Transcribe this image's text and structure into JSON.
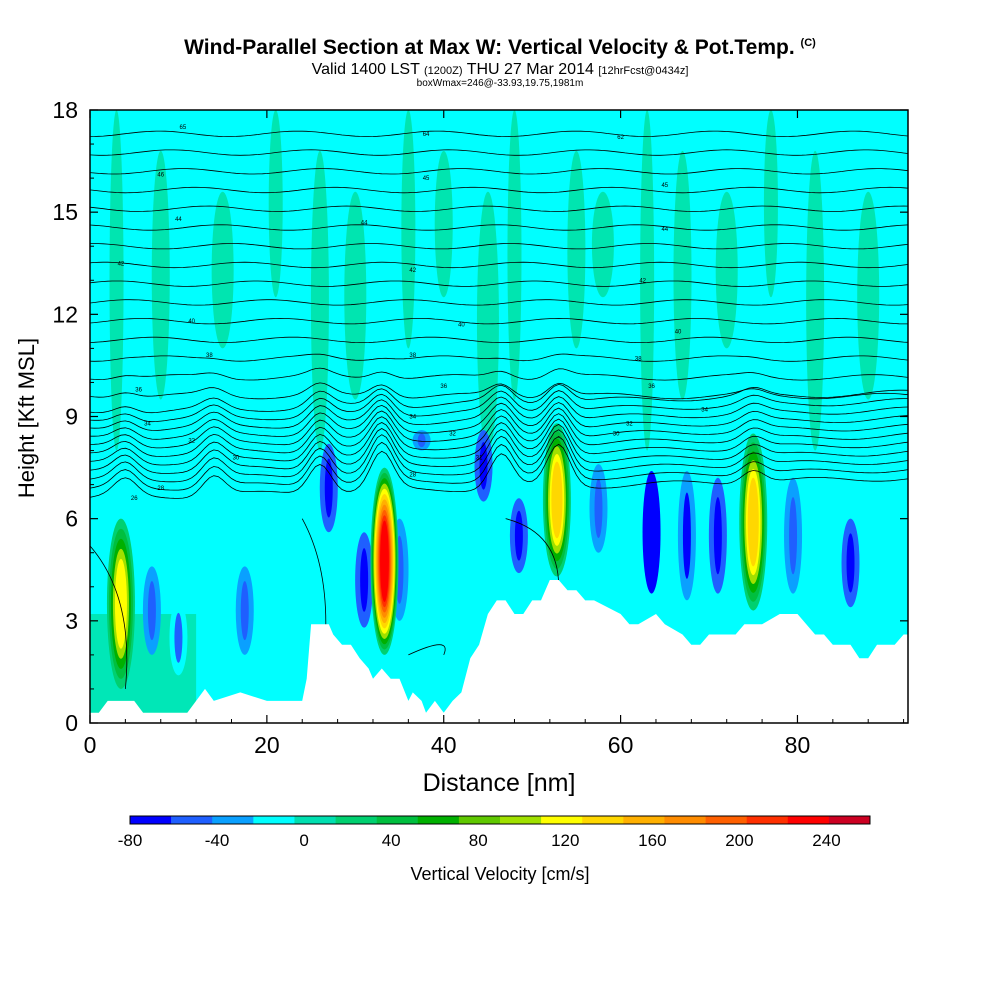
{
  "title": {
    "main": "Wind-Parallel Section at Max W: Vertical Velocity & Pot.Temp.",
    "copyright": "(C)",
    "valid_prefix": "Valid 1400 LST",
    "valid_utc": "(1200Z)",
    "valid_date": "THU 27 Mar 2014",
    "forecast": "[12hrFcst@0434z]",
    "box_info": "boxWmax=246@-33.93,19.75,1981m"
  },
  "colors": {
    "background_field": "#00ffff",
    "terrain": "#ffffff",
    "contour": "#000000"
  },
  "chart_data": {
    "type": "heatmap",
    "xlabel": "Distance [nm]",
    "ylabel": "Height [Kft MSL]",
    "xlim": [
      0,
      92.5
    ],
    "ylim": [
      0,
      18
    ],
    "x_ticks": [
      0,
      20,
      40,
      60,
      80
    ],
    "y_ticks": [
      0,
      3,
      6,
      9,
      12,
      15,
      18
    ],
    "colorbar": {
      "label": "Vertical Velocity [cm/s]",
      "tick_labels": [
        -80,
        -40,
        0,
        40,
        80,
        120,
        160,
        200,
        240
      ],
      "range": [
        -80,
        260
      ],
      "colors": [
        "#0000ff",
        "#1f5fff",
        "#0aa0ff",
        "#00ffff",
        "#00dfb0",
        "#00d070",
        "#00bf3f",
        "#00b000",
        "#5fc800",
        "#a0e000",
        "#ffff00",
        "#ffd700",
        "#ffb000",
        "#ff8c00",
        "#ff6000",
        "#ff3000",
        "#ff0000",
        "#cc0022"
      ]
    },
    "terrain_kft": {
      "distance_nm": [
        0,
        1,
        2,
        5,
        6,
        11,
        12,
        13,
        14,
        17,
        20,
        24,
        24.5,
        25,
        27,
        27.5,
        28.5,
        29.5,
        30.5,
        31.5,
        32,
        33,
        34,
        35,
        36,
        36.5,
        37.5,
        38,
        39,
        40,
        41,
        42,
        43,
        44,
        45,
        46,
        47,
        48,
        49,
        50,
        51,
        52,
        53,
        54,
        55,
        56,
        57,
        60,
        61,
        62,
        64,
        65,
        67,
        68,
        69,
        70,
        73,
        74,
        75,
        76,
        78,
        80,
        81,
        82,
        83,
        84,
        86,
        87,
        88,
        89,
        91,
        92,
        92.5
      ],
      "height": [
        0.3,
        0.3,
        0.65,
        0.65,
        0.3,
        0.3,
        0.65,
        1.0,
        0.65,
        0.9,
        0.65,
        0.65,
        1.3,
        2.9,
        2.9,
        2.6,
        2.3,
        2.3,
        1.9,
        1.6,
        1.3,
        1.6,
        1.3,
        1.3,
        0.65,
        0.9,
        0.65,
        0.3,
        0.65,
        0.3,
        0.65,
        0.9,
        1.9,
        2.3,
        3.2,
        3.6,
        3.6,
        3.2,
        3.2,
        3.6,
        3.6,
        4.2,
        4.2,
        3.9,
        3.9,
        3.6,
        3.6,
        3.2,
        2.9,
        2.9,
        3.2,
        2.9,
        2.6,
        2.3,
        2.3,
        2.6,
        2.6,
        2.9,
        2.9,
        2.9,
        3.2,
        3.2,
        2.9,
        2.6,
        2.6,
        2.3,
        2.3,
        1.9,
        1.9,
        2.3,
        2.3,
        2.6,
        2.6
      ]
    },
    "updraft_cores": [
      {
        "x": 3.5,
        "z_bottom": 1.0,
        "z_top": 6.0,
        "w_max": 120
      },
      {
        "x": 33.3,
        "z_bottom": 2.0,
        "z_top": 7.5,
        "w_max": 246
      },
      {
        "x": 52.8,
        "z_bottom": 4.3,
        "z_top": 8.8,
        "w_max": 140
      },
      {
        "x": 75.0,
        "z_bottom": 3.3,
        "z_top": 8.5,
        "w_max": 140
      }
    ],
    "theta_contour_labels": [
      {
        "x": 10.5,
        "z": 17.5,
        "text": "65"
      },
      {
        "x": 38,
        "z": 17.3,
        "text": "64"
      },
      {
        "x": 60,
        "z": 17.2,
        "text": "62"
      },
      {
        "x": 8,
        "z": 16.1,
        "text": "46"
      },
      {
        "x": 38,
        "z": 16.0,
        "text": "45"
      },
      {
        "x": 65,
        "z": 15.8,
        "text": "45"
      },
      {
        "x": 10,
        "z": 14.8,
        "text": "44"
      },
      {
        "x": 31,
        "z": 14.7,
        "text": "44"
      },
      {
        "x": 65,
        "z": 14.5,
        "text": "44"
      },
      {
        "x": 3.5,
        "z": 13.5,
        "text": "42"
      },
      {
        "x": 36.5,
        "z": 13.3,
        "text": "42"
      },
      {
        "x": 62.5,
        "z": 13.0,
        "text": "42"
      },
      {
        "x": 11.5,
        "z": 11.8,
        "text": "40"
      },
      {
        "x": 42,
        "z": 11.7,
        "text": "40"
      },
      {
        "x": 66.5,
        "z": 11.5,
        "text": "40"
      },
      {
        "x": 13.5,
        "z": 10.8,
        "text": "38"
      },
      {
        "x": 36.5,
        "z": 10.8,
        "text": "38"
      },
      {
        "x": 62,
        "z": 10.7,
        "text": "38"
      },
      {
        "x": 5.5,
        "z": 9.8,
        "text": "36"
      },
      {
        "x": 40,
        "z": 9.9,
        "text": "36"
      },
      {
        "x": 63.5,
        "z": 9.9,
        "text": "36"
      },
      {
        "x": 6.5,
        "z": 8.8,
        "text": "34"
      },
      {
        "x": 36.5,
        "z": 9.0,
        "text": "34"
      },
      {
        "x": 69.5,
        "z": 9.2,
        "text": "34"
      },
      {
        "x": 11.5,
        "z": 8.3,
        "text": "32"
      },
      {
        "x": 41,
        "z": 8.5,
        "text": "32"
      },
      {
        "x": 61,
        "z": 8.8,
        "text": "32"
      },
      {
        "x": 16.5,
        "z": 7.8,
        "text": "30"
      },
      {
        "x": 44,
        "z": 7.8,
        "text": "31"
      },
      {
        "x": 59.5,
        "z": 8.5,
        "text": "30"
      },
      {
        "x": 8,
        "z": 6.9,
        "text": "28"
      },
      {
        "x": 36.5,
        "z": 7.3,
        "text": "28"
      },
      {
        "x": 5,
        "z": 6.6,
        "text": "26"
      }
    ]
  }
}
